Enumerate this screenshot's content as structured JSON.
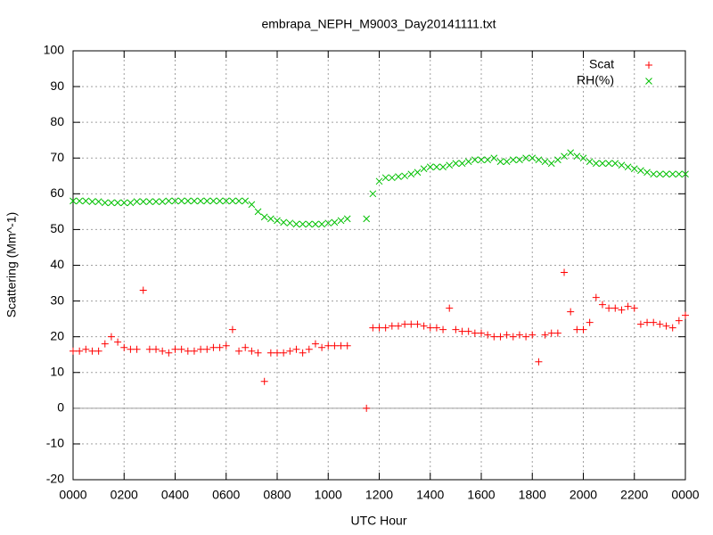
{
  "chart_data": {
    "type": "scatter",
    "title": "embrapa_NEPH_M9003_Day20141111.txt",
    "x_label": "UTC Hour",
    "y_label": "Scattering (Mm^-1)",
    "x": [
      0,
      0.25,
      0.5,
      0.75,
      1,
      1.25,
      1.5,
      1.75,
      2,
      2.25,
      2.5,
      2.75,
      3,
      3.25,
      3.5,
      3.75,
      4,
      4.25,
      4.5,
      4.75,
      5,
      5.25,
      5.5,
      5.75,
      6,
      6.25,
      6.5,
      6.75,
      7,
      7.25,
      7.5,
      7.75,
      8,
      8.25,
      8.5,
      8.75,
      9,
      9.25,
      9.5,
      9.75,
      10,
      10.25,
      10.5,
      10.75,
      11,
      11.25,
      11.5,
      11.75,
      12,
      12.25,
      12.5,
      12.75,
      13,
      13.25,
      13.5,
      13.75,
      14,
      14.25,
      14.5,
      14.75,
      15,
      15.25,
      15.5,
      15.75,
      16,
      16.25,
      16.5,
      16.75,
      17,
      17.25,
      17.5,
      17.75,
      18,
      18.25,
      18.5,
      18.75,
      19,
      19.25,
      19.5,
      19.75,
      20,
      20.25,
      20.5,
      20.75,
      21,
      21.25,
      21.5,
      21.75,
      22,
      22.25,
      22.5,
      22.75,
      23,
      23.25,
      23.5,
      23.75,
      24
    ],
    "series": [
      {
        "name": "Scat",
        "color": "#ff0000",
        "marker": "plus",
        "values": [
          16,
          16,
          16.5,
          16,
          16,
          18,
          20,
          18.5,
          17,
          16.5,
          16.5,
          33,
          16.5,
          16.5,
          16,
          15.5,
          16.5,
          16.5,
          16,
          16,
          16.5,
          16.5,
          17,
          17,
          17.5,
          22,
          16,
          17,
          16,
          15.5,
          7.5,
          15.5,
          15.5,
          15.5,
          16,
          16.5,
          15.5,
          16.5,
          18,
          17,
          17.5,
          17.5,
          17.5,
          17.5,
          null,
          null,
          0,
          22.5,
          22.5,
          22.5,
          23,
          23,
          23.5,
          23.5,
          23.5,
          23,
          22.5,
          22.5,
          22,
          28,
          22,
          21.5,
          21.5,
          21,
          21,
          20.5,
          20,
          20,
          20.5,
          20,
          20.5,
          20,
          20.5,
          13,
          20.5,
          21,
          21,
          38,
          27,
          22,
          22,
          24,
          31,
          29,
          28,
          28,
          27.5,
          28.5,
          28,
          23.5,
          24,
          24,
          23.5,
          23,
          22.5,
          24.5,
          26
        ]
      },
      {
        "name": "RH(%)",
        "color": "#00c000",
        "marker": "cross",
        "values": [
          58,
          58,
          58,
          57.8,
          57.8,
          57.5,
          57.5,
          57.5,
          57.5,
          57.5,
          57.8,
          57.8,
          57.8,
          57.8,
          57.8,
          58,
          58,
          58,
          58,
          58,
          58,
          58,
          58,
          58,
          58,
          58,
          58,
          58,
          57,
          55,
          53.5,
          53,
          52.5,
          52,
          51.8,
          51.5,
          51.5,
          51.5,
          51.5,
          51.5,
          51.8,
          52,
          52.5,
          53,
          null,
          null,
          53,
          60,
          63.5,
          64.5,
          64.5,
          64.8,
          65,
          65.5,
          66,
          67,
          67.5,
          67.5,
          67.5,
          68,
          68.5,
          68.5,
          69,
          69.5,
          69.5,
          69.5,
          70,
          69,
          69,
          69.5,
          69.5,
          70,
          70,
          69.5,
          69,
          68.5,
          69.5,
          70.5,
          71.5,
          70.5,
          70,
          69,
          68.5,
          68.5,
          68.5,
          68.5,
          68,
          67.5,
          67,
          66.5,
          66,
          65.5,
          65.5,
          65.5,
          65.5,
          65.5,
          65.5
        ]
      }
    ],
    "xlim": [
      0,
      24
    ],
    "xticks": [
      {
        "value": 0,
        "label": "0000"
      },
      {
        "value": 2,
        "label": "0200"
      },
      {
        "value": 4,
        "label": "0400"
      },
      {
        "value": 6,
        "label": "0600"
      },
      {
        "value": 8,
        "label": "0800"
      },
      {
        "value": 10,
        "label": "1000"
      },
      {
        "value": 12,
        "label": "1200"
      },
      {
        "value": 14,
        "label": "1400"
      },
      {
        "value": 16,
        "label": "1600"
      },
      {
        "value": 18,
        "label": "1800"
      },
      {
        "value": 20,
        "label": "2000"
      },
      {
        "value": 22,
        "label": "2200"
      },
      {
        "value": 24,
        "label": "0000"
      }
    ],
    "ylim": [
      -20,
      100
    ],
    "yticks": [
      -20,
      -10,
      0,
      10,
      20,
      30,
      40,
      50,
      60,
      70,
      80,
      90,
      100
    ],
    "grid": true,
    "zeroaxis": true,
    "legend": "top-right"
  }
}
